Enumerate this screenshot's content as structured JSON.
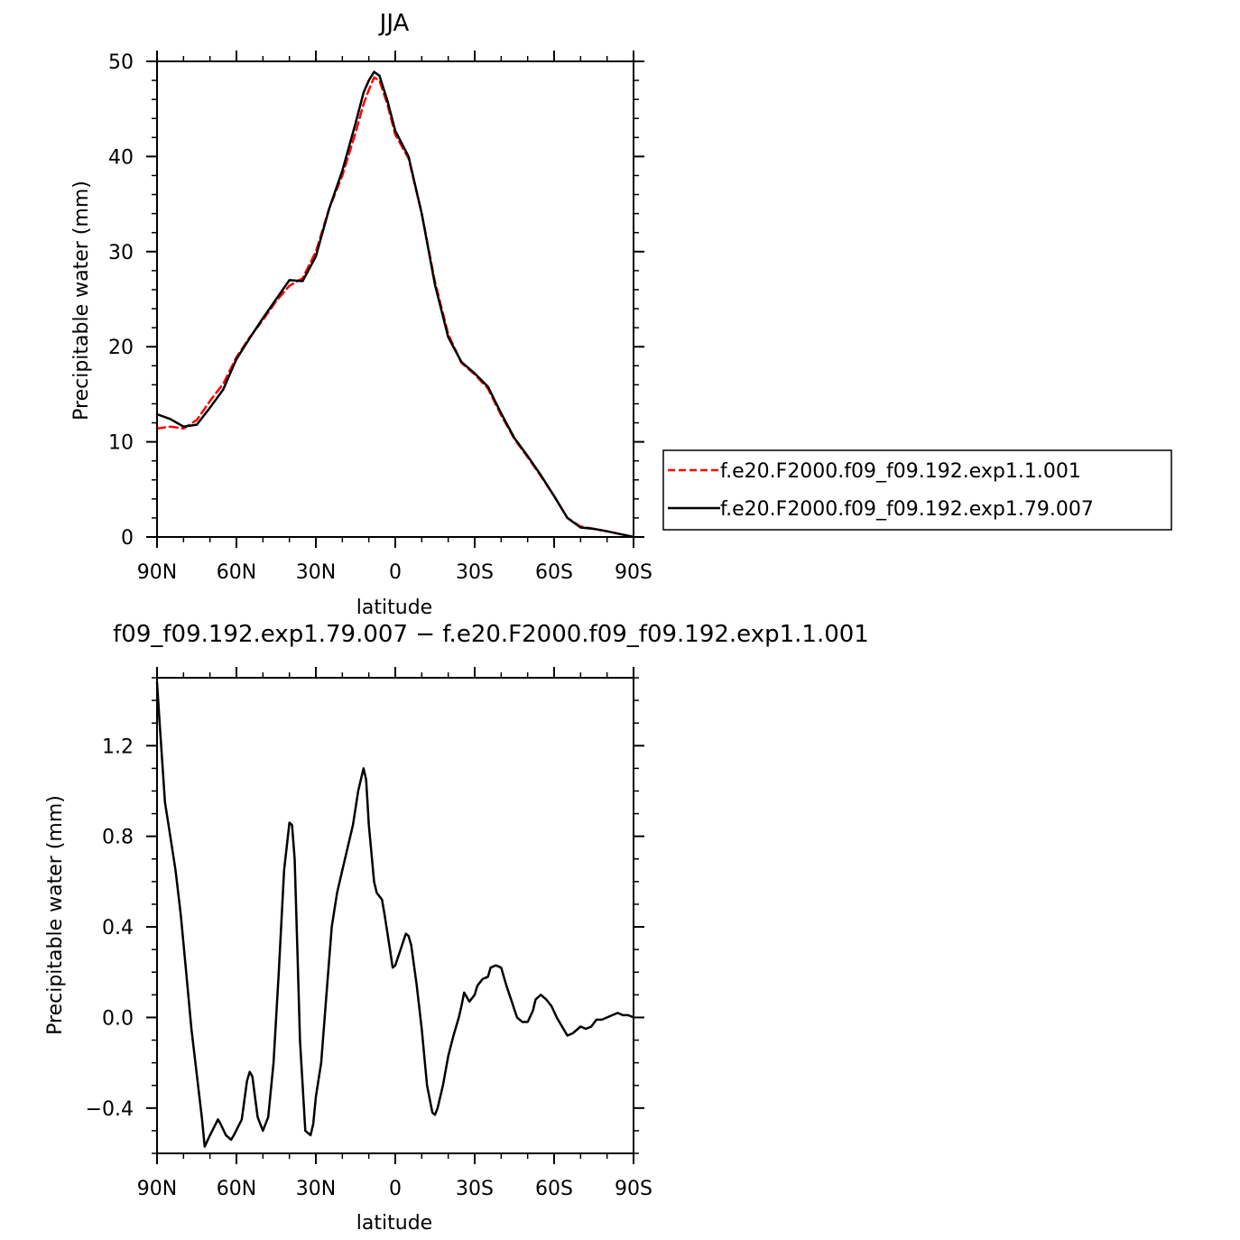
{
  "chart_data": [
    {
      "type": "line",
      "title": "JJA",
      "xlabel": "latitude",
      "ylabel": "Precipitable water (mm)",
      "xlim": [
        90,
        -90
      ],
      "ylim": [
        0,
        50
      ],
      "x_ticks": [
        90,
        60,
        30,
        0,
        -30,
        -60,
        -90
      ],
      "x_tick_labels": [
        "90N",
        "60N",
        "30N",
        "0",
        "30S",
        "60S",
        "90S"
      ],
      "y_ticks": [
        0,
        10,
        20,
        30,
        40,
        50
      ],
      "y_tick_labels": [
        "0",
        "10",
        "20",
        "30",
        "40",
        "50"
      ],
      "legend_position": "right",
      "series": [
        {
          "name": "f.e20.F2000.f09_f09.192.exp1.1.001",
          "color": "#ff0000",
          "style": "dashed",
          "x": [
            90,
            85,
            80,
            75,
            70,
            65,
            60,
            55,
            50,
            45,
            40,
            35,
            30,
            25,
            20,
            15,
            12,
            10,
            8,
            6,
            3,
            0,
            -5,
            -10,
            -15,
            -20,
            -25,
            -30,
            -35,
            -40,
            -45,
            -50,
            -55,
            -60,
            -65,
            -70,
            -75,
            -80,
            -85,
            -90
          ],
          "y": [
            11.4,
            11.6,
            11.4,
            12.3,
            14.3,
            16.1,
            18.9,
            21.0,
            22.8,
            24.8,
            26.4,
            27.2,
            30.0,
            34.5,
            38.0,
            42.5,
            45.5,
            47.0,
            48.3,
            48.0,
            45.5,
            42.3,
            39.8,
            34.0,
            26.8,
            21.3,
            18.3,
            17.1,
            15.6,
            12.8,
            10.3,
            8.4,
            6.4,
            4.3,
            2.0,
            1.1,
            0.85,
            0.6,
            0.3,
            0.0
          ]
        },
        {
          "name": "f.e20.F2000.f09_f09.192.exp1.79.007",
          "color": "#000000",
          "style": "solid",
          "x": [
            90,
            85,
            80,
            75,
            70,
            65,
            60,
            55,
            50,
            45,
            40,
            35,
            30,
            25,
            20,
            15,
            12,
            10,
            8,
            6,
            3,
            0,
            -5,
            -10,
            -15,
            -20,
            -25,
            -30,
            -35,
            -40,
            -45,
            -50,
            -55,
            -60,
            -65,
            -70,
            -75,
            -80,
            -85,
            -90
          ],
          "y": [
            12.9,
            12.4,
            11.6,
            11.8,
            13.6,
            15.5,
            18.7,
            20.9,
            23.0,
            25.0,
            27.0,
            26.9,
            29.5,
            34.5,
            38.5,
            43.5,
            46.7,
            48.0,
            48.9,
            48.5,
            45.9,
            42.7,
            40.0,
            34.0,
            26.5,
            21.0,
            18.4,
            17.2,
            15.8,
            13.0,
            10.4,
            8.5,
            6.5,
            4.3,
            2.0,
            1.0,
            0.85,
            0.6,
            0.3,
            0.0
          ]
        }
      ]
    },
    {
      "type": "line",
      "title": "f09_f09.192.exp1.79.007 − f.e20.F2000.f09_f09.192.exp1.1.001",
      "xlabel": "latitude",
      "ylabel": "Precipitable water (mm)",
      "xlim": [
        90,
        -90
      ],
      "ylim": [
        -0.6,
        1.5
      ],
      "x_ticks": [
        90,
        60,
        30,
        0,
        -30,
        -60,
        -90
      ],
      "x_tick_labels": [
        "90N",
        "60N",
        "30N",
        "0",
        "30S",
        "60S",
        "90S"
      ],
      "y_ticks": [
        -0.4,
        0.0,
        0.4,
        0.8,
        1.2
      ],
      "y_tick_labels": [
        "−0.4",
        "0.0",
        "0.4",
        "0.8",
        "1.2"
      ],
      "series": [
        {
          "color": "#000000",
          "style": "solid",
          "x": [
            90,
            89,
            87,
            85,
            83,
            81,
            79,
            77,
            75,
            73,
            72,
            70,
            67,
            66,
            64,
            62,
            61,
            58,
            56,
            55,
            54,
            52,
            50,
            48,
            46,
            44,
            42,
            40,
            39,
            38,
            37,
            36,
            34,
            32,
            31,
            30,
            28,
            26,
            24,
            22,
            20,
            18,
            16,
            14,
            12,
            11,
            10,
            8,
            7,
            5,
            4,
            2,
            1,
            0,
            -2,
            -4,
            -5,
            -6,
            -8,
            -10,
            -12,
            -14,
            -15,
            -16,
            -18,
            -20,
            -22,
            -24,
            -25,
            -26,
            -28,
            -30,
            -31,
            -33,
            -35,
            -36,
            -38,
            -40,
            -42,
            -44,
            -46,
            -48,
            -50,
            -52,
            -53,
            -55,
            -57,
            -59,
            -61,
            -63,
            -65,
            -67,
            -68,
            -70,
            -72,
            -74,
            -76,
            -78,
            -80,
            -82,
            -84,
            -86,
            -88,
            -90
          ],
          "y": [
            1.48,
            1.3,
            0.95,
            0.8,
            0.65,
            0.45,
            0.2,
            -0.05,
            -0.25,
            -0.45,
            -0.57,
            -0.52,
            -0.45,
            -0.47,
            -0.52,
            -0.54,
            -0.52,
            -0.45,
            -0.28,
            -0.24,
            -0.26,
            -0.44,
            -0.5,
            -0.44,
            -0.2,
            0.2,
            0.65,
            0.86,
            0.85,
            0.7,
            0.3,
            -0.1,
            -0.5,
            -0.52,
            -0.47,
            -0.35,
            -0.2,
            0.1,
            0.4,
            0.55,
            0.65,
            0.75,
            0.85,
            1.0,
            1.1,
            1.05,
            0.85,
            0.6,
            0.55,
            0.52,
            0.45,
            0.3,
            0.22,
            0.23,
            0.3,
            0.37,
            0.36,
            0.32,
            0.15,
            -0.05,
            -0.3,
            -0.42,
            -0.43,
            -0.4,
            -0.3,
            -0.17,
            -0.08,
            0.0,
            0.05,
            0.11,
            0.07,
            0.1,
            0.14,
            0.17,
            0.18,
            0.22,
            0.23,
            0.22,
            0.14,
            0.07,
            0.0,
            -0.02,
            -0.02,
            0.03,
            0.08,
            0.1,
            0.08,
            0.05,
            0.0,
            -0.04,
            -0.08,
            -0.07,
            -0.06,
            -0.04,
            -0.05,
            -0.04,
            -0.01,
            -0.01,
            0.0,
            0.01,
            0.02,
            0.01,
            0.01,
            0.0
          ]
        }
      ]
    }
  ]
}
